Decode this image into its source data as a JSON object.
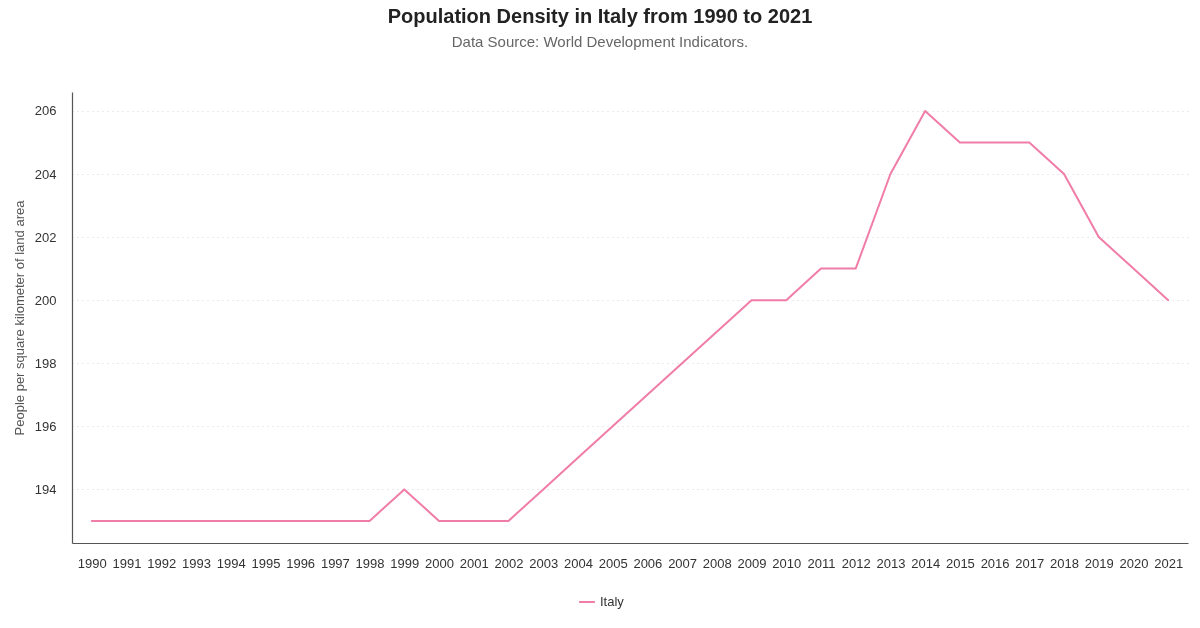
{
  "chart_data": {
    "type": "line",
    "title": "Population Density in Italy from 1990 to 2021",
    "subtitle": "Data Source: World Development Indicators.",
    "ylabel": "People per square kilometer of land area",
    "categories": [
      "1990",
      "1991",
      "1992",
      "1993",
      "1994",
      "1995",
      "1996",
      "1997",
      "1998",
      "1999",
      "2000",
      "2001",
      "2002",
      "2003",
      "2004",
      "2005",
      "2006",
      "2007",
      "2008",
      "2009",
      "2010",
      "2011",
      "2012",
      "2013",
      "2014",
      "2015",
      "2016",
      "2017",
      "2018",
      "2019",
      "2020",
      "2021"
    ],
    "series": [
      {
        "name": "Italy",
        "color": "#f07ca8",
        "values": [
          193,
          193,
          193,
          193,
          193,
          193,
          193,
          193,
          193,
          194,
          193,
          193,
          193,
          194,
          195,
          196,
          197,
          198,
          199,
          200,
          200,
          201,
          201,
          204,
          206,
          205,
          205,
          205,
          204,
          202,
          201,
          200
        ]
      }
    ],
    "ylim": [
      192.3,
      206.6
    ],
    "yticks": [
      194,
      196,
      198,
      200,
      202,
      204,
      206
    ],
    "grid": "y",
    "legend": "bottom",
    "marker": "none",
    "line_style": "solid"
  }
}
